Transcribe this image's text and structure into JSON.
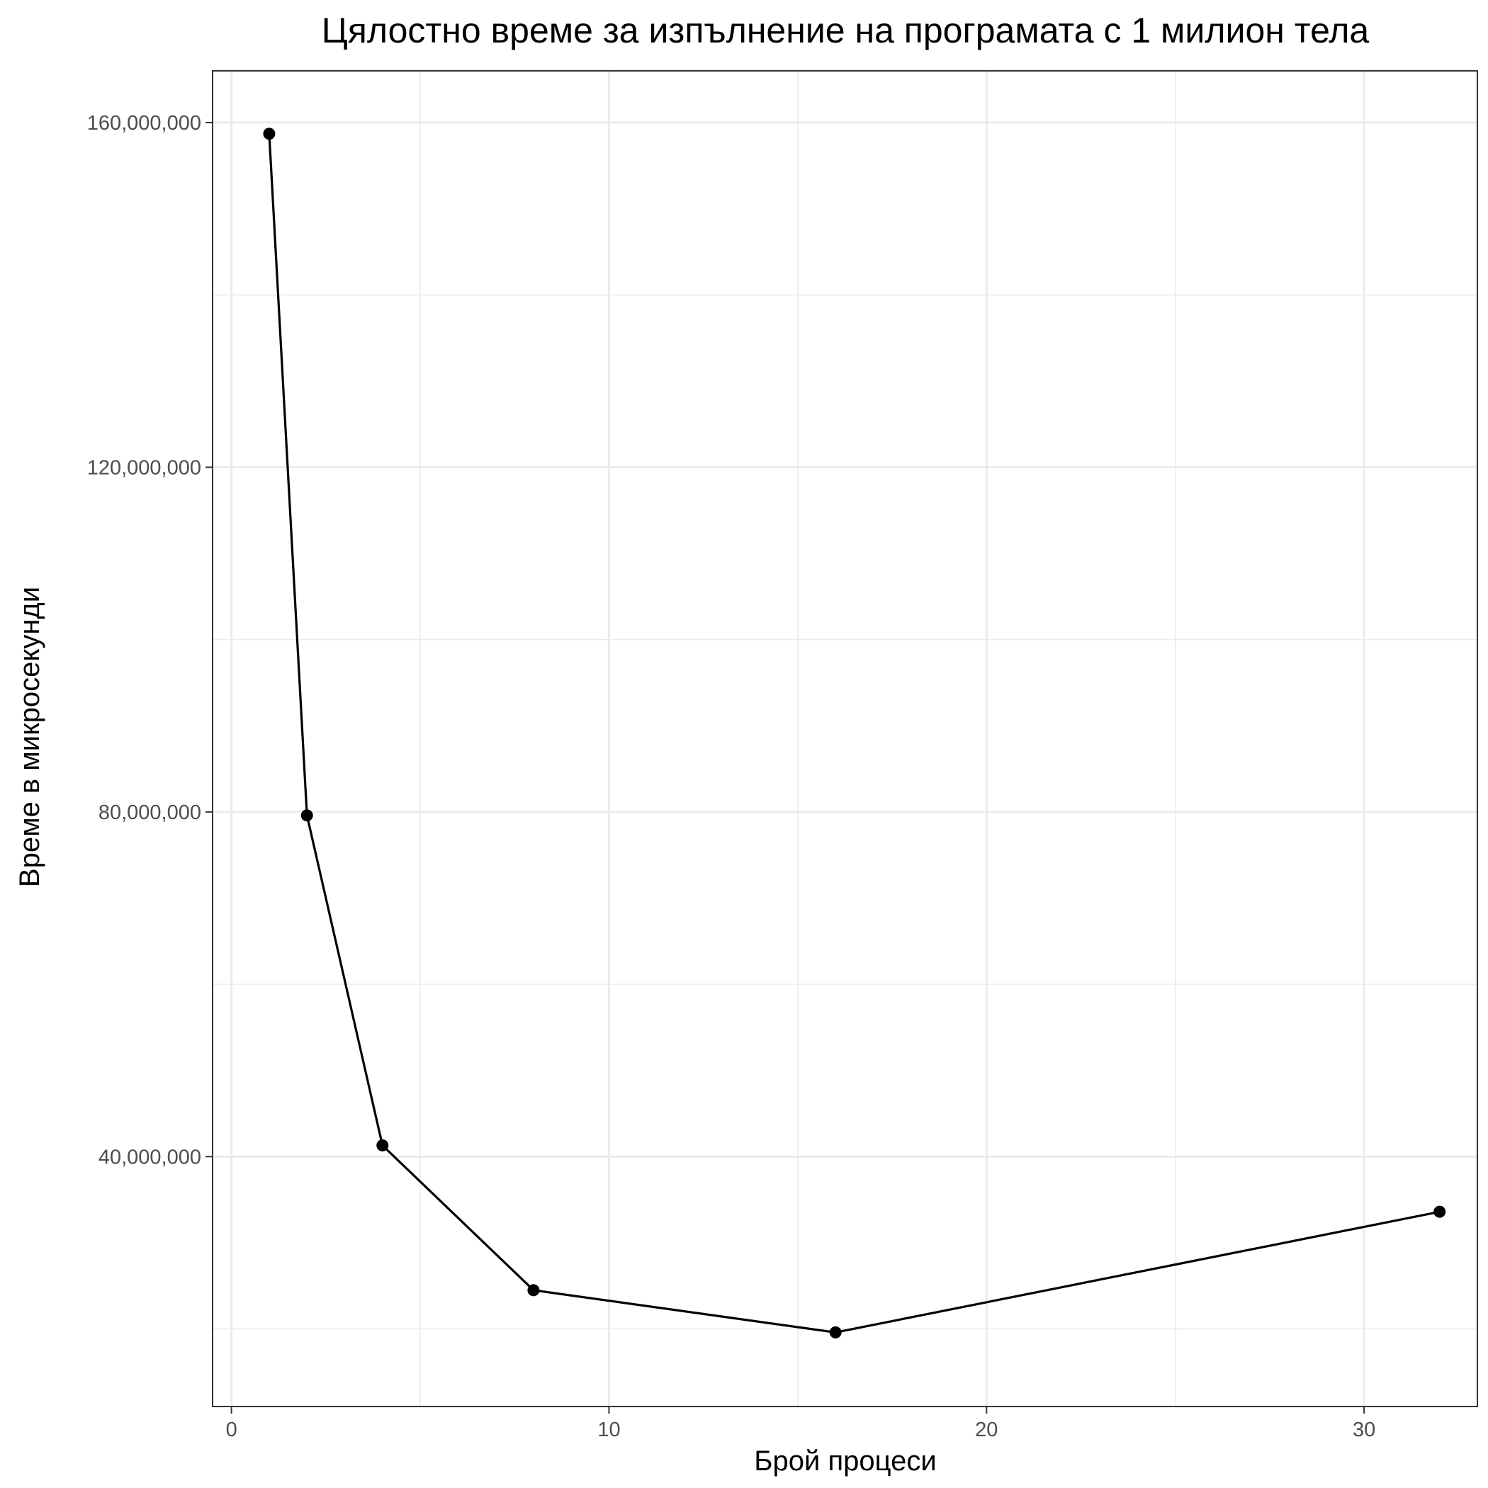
{
  "chart_data": {
    "type": "line",
    "title": "Цялостно време за изпълнение на програмата с 1 милион тела",
    "xlabel": "Брой процеси",
    "ylabel": "Време в микросекунди",
    "xlim": [
      -0.5,
      33
    ],
    "ylim": [
      11000000,
      166000000
    ],
    "x_ticks": [
      0,
      10,
      20,
      30
    ],
    "x_tick_labels": [
      "0",
      "10",
      "20",
      "30"
    ],
    "x_minor_ticks": [
      5,
      15,
      25
    ],
    "y_ticks": [
      40000000,
      80000000,
      120000000,
      160000000
    ],
    "y_tick_labels": [
      "40,000,000",
      "80,000,000",
      "120,000,000",
      "160,000,000"
    ],
    "y_minor_ticks": [
      20000000,
      60000000,
      100000000,
      140000000
    ],
    "grid": true,
    "series": [
      {
        "x": [
          1,
          2,
          4,
          8,
          16,
          32
        ],
        "y": [
          158700000,
          79600000,
          41300000,
          24500000,
          19600000,
          33600000
        ],
        "color": "#000000"
      }
    ]
  }
}
